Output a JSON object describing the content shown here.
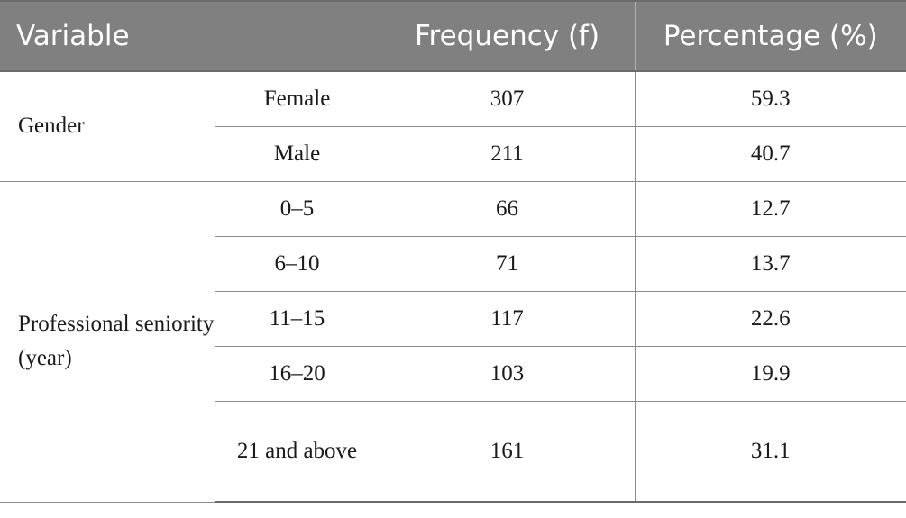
{
  "table": {
    "headers": {
      "variable": "Variable",
      "frequency": "Frequency (f)",
      "percentage": "Percentage (%)"
    },
    "groups": [
      {
        "label": "Gender",
        "rows": [
          {
            "category": "Female",
            "frequency": "307",
            "percentage": "59.3"
          },
          {
            "category": "Male",
            "frequency": "211",
            "percentage": "40.7"
          }
        ]
      },
      {
        "label": "Professional seniority (year)",
        "rows": [
          {
            "category": "0–5",
            "frequency": "66",
            "percentage": "12.7"
          },
          {
            "category": "6–10",
            "frequency": "71",
            "percentage": "13.7"
          },
          {
            "category": "11–15",
            "frequency": "117",
            "percentage": "22.6"
          },
          {
            "category": "16–20",
            "frequency": "103",
            "percentage": "19.9"
          },
          {
            "category": "21 and above",
            "frequency": "161",
            "percentage": "31.1"
          }
        ]
      }
    ]
  }
}
